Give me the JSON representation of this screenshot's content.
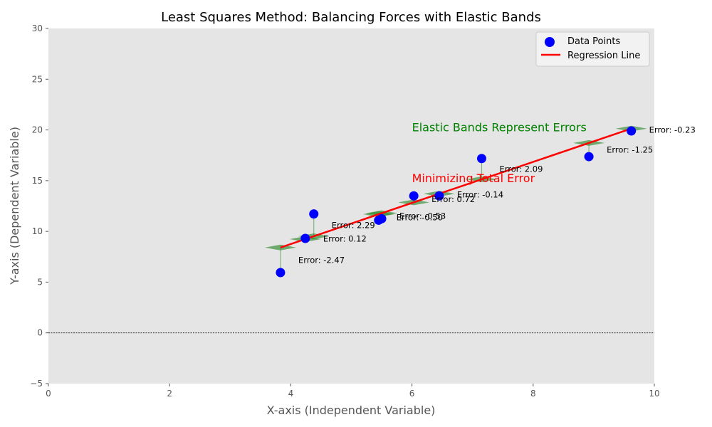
{
  "chart_data": {
    "type": "scatter",
    "title": "Least Squares Method: Balancing Forces with Elastic Bands",
    "xlabel": "X-axis (Independent Variable)",
    "ylabel": "Y-axis (Dependent Variable)",
    "xlim": [
      0,
      10
    ],
    "ylim": [
      -5,
      30
    ],
    "xticks": [
      0,
      2,
      4,
      6,
      8,
      10
    ],
    "yticks": [
      -5,
      0,
      5,
      10,
      15,
      20,
      25,
      30
    ],
    "grid": false,
    "legend_position": "top-right",
    "zero_line": 0,
    "regression": {
      "name": "Regression Line",
      "x": [
        3.83,
        9.62
      ],
      "y": [
        8.41,
        20.13
      ],
      "color": "#ff0000"
    },
    "points": {
      "name": "Data Points",
      "color": "#0000ff",
      "x": [
        3.83,
        4.24,
        4.38,
        5.45,
        5.5,
        6.03,
        6.45,
        7.15,
        8.92,
        9.62
      ],
      "y": [
        5.94,
        9.31,
        11.72,
        11.1,
        11.25,
        13.5,
        13.5,
        17.18,
        17.37,
        19.9
      ]
    },
    "errors": [
      "Error: -2.47",
      "Error: 0.12",
      "Error: 2.29",
      "Error: -0.50",
      "Error: -0.53",
      "Error: 0.72",
      "Error: -0.14",
      "Error: 2.09",
      "Error: -1.25",
      "Error: -0.23"
    ],
    "annotations": [
      {
        "text": "Elastic Bands Represent Errors",
        "x": 6.0,
        "y": 20.0,
        "color": "#008000"
      },
      {
        "text": "Minimizing Total Error",
        "x": 6.0,
        "y": 15.0,
        "color": "#ff0000"
      }
    ],
    "band_color": "#2e8b2e"
  }
}
